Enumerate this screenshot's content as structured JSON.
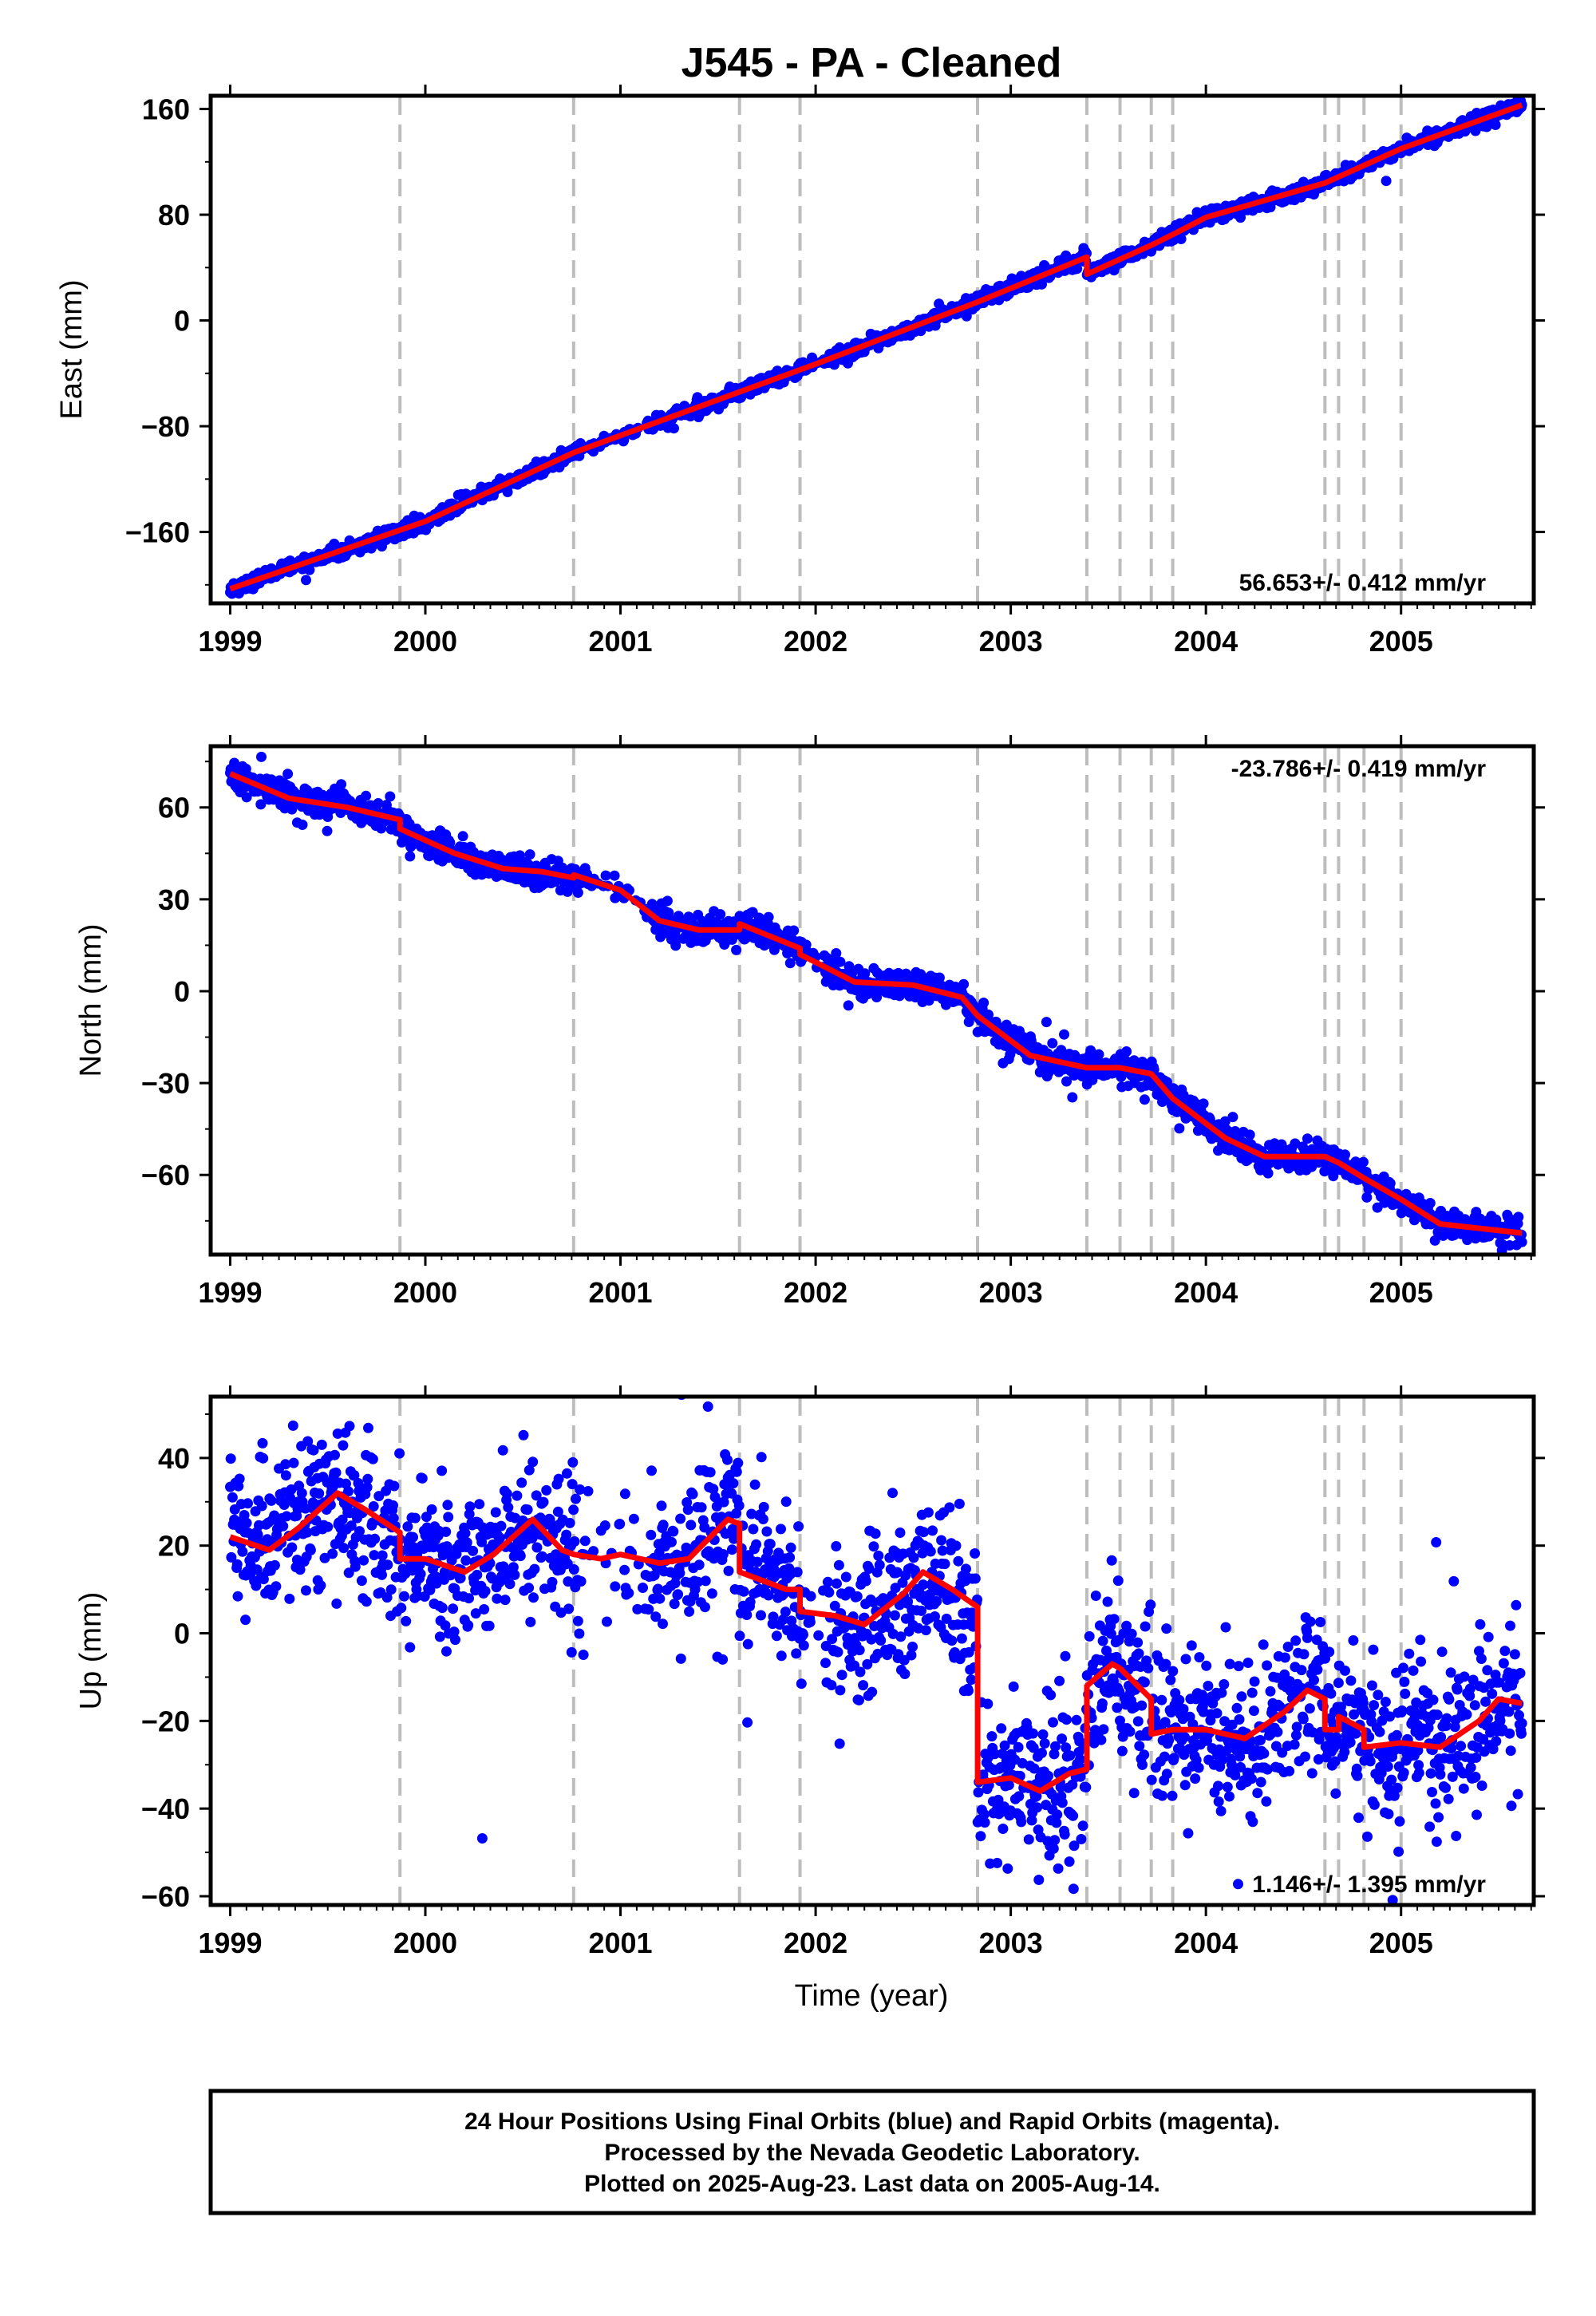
{
  "colors": {
    "points": "#0000ff",
    "model": "#ff0000",
    "offset_lines": "#bdbdbd",
    "frame": "#000000"
  },
  "chart_data": {
    "title": "J545  - PA - Cleaned",
    "xlabel": "Time (year)",
    "x_ticks": [
      1999,
      2000,
      2001,
      2002,
      2003,
      2004,
      2005
    ],
    "xlim": [
      1998.9,
      2005.68
    ],
    "offset_epochs": [
      1999.87,
      2000.76,
      2001.61,
      2001.92,
      2002.83,
      2003.39,
      2003.56,
      2003.72,
      2003.83,
      2004.61,
      2004.68,
      2004.81,
      2005.0
    ],
    "panels": [
      {
        "type": "scatter",
        "ylabel": "East (mm)",
        "ylim": [
          -214,
          170
        ],
        "y_ticks": [
          -160,
          -80,
          0,
          80,
          160
        ],
        "rate_label": "56.653+/- 0.412 mm/yr",
        "rate_position": "bottom-right",
        "model_line": [
          [
            1999.0,
            -203
          ],
          [
            2000.0,
            -152
          ],
          [
            2000.76,
            -100
          ],
          [
            2001.0,
            -87
          ],
          [
            2002.0,
            -33
          ],
          [
            2002.83,
            14
          ],
          [
            2003.39,
            48
          ],
          [
            2003.39,
            35
          ],
          [
            2003.72,
            57
          ],
          [
            2003.83,
            65
          ],
          [
            2004.0,
            78
          ],
          [
            2004.61,
            104
          ],
          [
            2005.0,
            130
          ],
          [
            2005.62,
            163
          ]
        ],
        "points_note": "daily positions, about 2200 samples scattered ±4 mm around the model line"
      },
      {
        "type": "scatter",
        "ylabel": "North (mm)",
        "ylim": [
          -86,
          80
        ],
        "y_ticks": [
          -60,
          -30,
          0,
          30,
          60
        ],
        "rate_label": "-23.786+/- 0.419 mm/yr",
        "rate_position": "top-right",
        "model_line": [
          [
            1999.0,
            71
          ],
          [
            1999.3,
            63
          ],
          [
            1999.6,
            60
          ],
          [
            1999.87,
            56
          ],
          [
            1999.87,
            53
          ],
          [
            2000.15,
            45
          ],
          [
            2000.4,
            40
          ],
          [
            2000.6,
            39
          ],
          [
            2000.76,
            37
          ],
          [
            2000.76,
            38
          ],
          [
            2001.0,
            33
          ],
          [
            2001.2,
            23
          ],
          [
            2001.4,
            20
          ],
          [
            2001.61,
            20
          ],
          [
            2001.61,
            22
          ],
          [
            2001.92,
            14
          ],
          [
            2001.92,
            12
          ],
          [
            2002.2,
            3
          ],
          [
            2002.5,
            2
          ],
          [
            2002.75,
            -2
          ],
          [
            2002.83,
            -8
          ],
          [
            2003.1,
            -21
          ],
          [
            2003.39,
            -25
          ],
          [
            2003.56,
            -25
          ],
          [
            2003.72,
            -27
          ],
          [
            2003.83,
            -35
          ],
          [
            2004.1,
            -48
          ],
          [
            2004.3,
            -54
          ],
          [
            2004.61,
            -54
          ],
          [
            2004.68,
            -56
          ],
          [
            2004.81,
            -61
          ],
          [
            2005.0,
            -68
          ],
          [
            2005.2,
            -76
          ],
          [
            2005.62,
            -79
          ]
        ],
        "points_note": "daily positions, about 2200 samples scattered ±4 mm around the model line"
      },
      {
        "type": "scatter",
        "ylabel": "Up (mm)",
        "ylim": [
          -62,
          54
        ],
        "y_ticks": [
          -60,
          -40,
          -20,
          0,
          20,
          40
        ],
        "rate_label": "1.146+/- 1.395 mm/yr",
        "rate_position": "bottom-right",
        "model_line": [
          [
            1999.0,
            22
          ],
          [
            1999.2,
            19
          ],
          [
            1999.35,
            24
          ],
          [
            1999.55,
            32
          ],
          [
            1999.7,
            28
          ],
          [
            1999.87,
            23
          ],
          [
            1999.87,
            17
          ],
          [
            2000.0,
            17
          ],
          [
            2000.2,
            14
          ],
          [
            2000.35,
            18
          ],
          [
            2000.55,
            26
          ],
          [
            2000.7,
            19
          ],
          [
            2000.76,
            18
          ],
          [
            2000.9,
            17
          ],
          [
            2001.0,
            18
          ],
          [
            2001.2,
            16
          ],
          [
            2001.35,
            17
          ],
          [
            2001.55,
            26
          ],
          [
            2001.61,
            25
          ],
          [
            2001.61,
            14
          ],
          [
            2001.85,
            10
          ],
          [
            2001.92,
            10
          ],
          [
            2001.92,
            5
          ],
          [
            2002.1,
            4
          ],
          [
            2002.25,
            2
          ],
          [
            2002.45,
            9
          ],
          [
            2002.55,
            14
          ],
          [
            2002.7,
            10
          ],
          [
            2002.83,
            6
          ],
          [
            2002.83,
            -34
          ],
          [
            2003.0,
            -33
          ],
          [
            2003.15,
            -36
          ],
          [
            2003.3,
            -32
          ],
          [
            2003.39,
            -31
          ],
          [
            2003.39,
            -12
          ],
          [
            2003.52,
            -7
          ],
          [
            2003.56,
            -8
          ],
          [
            2003.72,
            -15
          ],
          [
            2003.72,
            -23
          ],
          [
            2003.83,
            -22
          ],
          [
            2004.0,
            -22
          ],
          [
            2004.2,
            -24
          ],
          [
            2004.4,
            -18
          ],
          [
            2004.52,
            -13
          ],
          [
            2004.61,
            -15
          ],
          [
            2004.61,
            -22
          ],
          [
            2004.68,
            -22
          ],
          [
            2004.68,
            -19
          ],
          [
            2004.81,
            -22
          ],
          [
            2004.81,
            -26
          ],
          [
            2005.0,
            -25
          ],
          [
            2005.2,
            -26
          ],
          [
            2005.4,
            -20
          ],
          [
            2005.5,
            -15
          ],
          [
            2005.62,
            -16
          ]
        ],
        "points_note": "daily positions, about 2200 samples scattered ±9 mm around the model line"
      }
    ]
  },
  "footer": {
    "line1": "24 Hour Positions Using Final Orbits (blue) and Rapid Orbits (magenta).",
    "line2": "Processed by the Nevada Geodetic Laboratory.",
    "line3": "Plotted on 2025-Aug-23. Last data on 2005-Aug-14."
  }
}
